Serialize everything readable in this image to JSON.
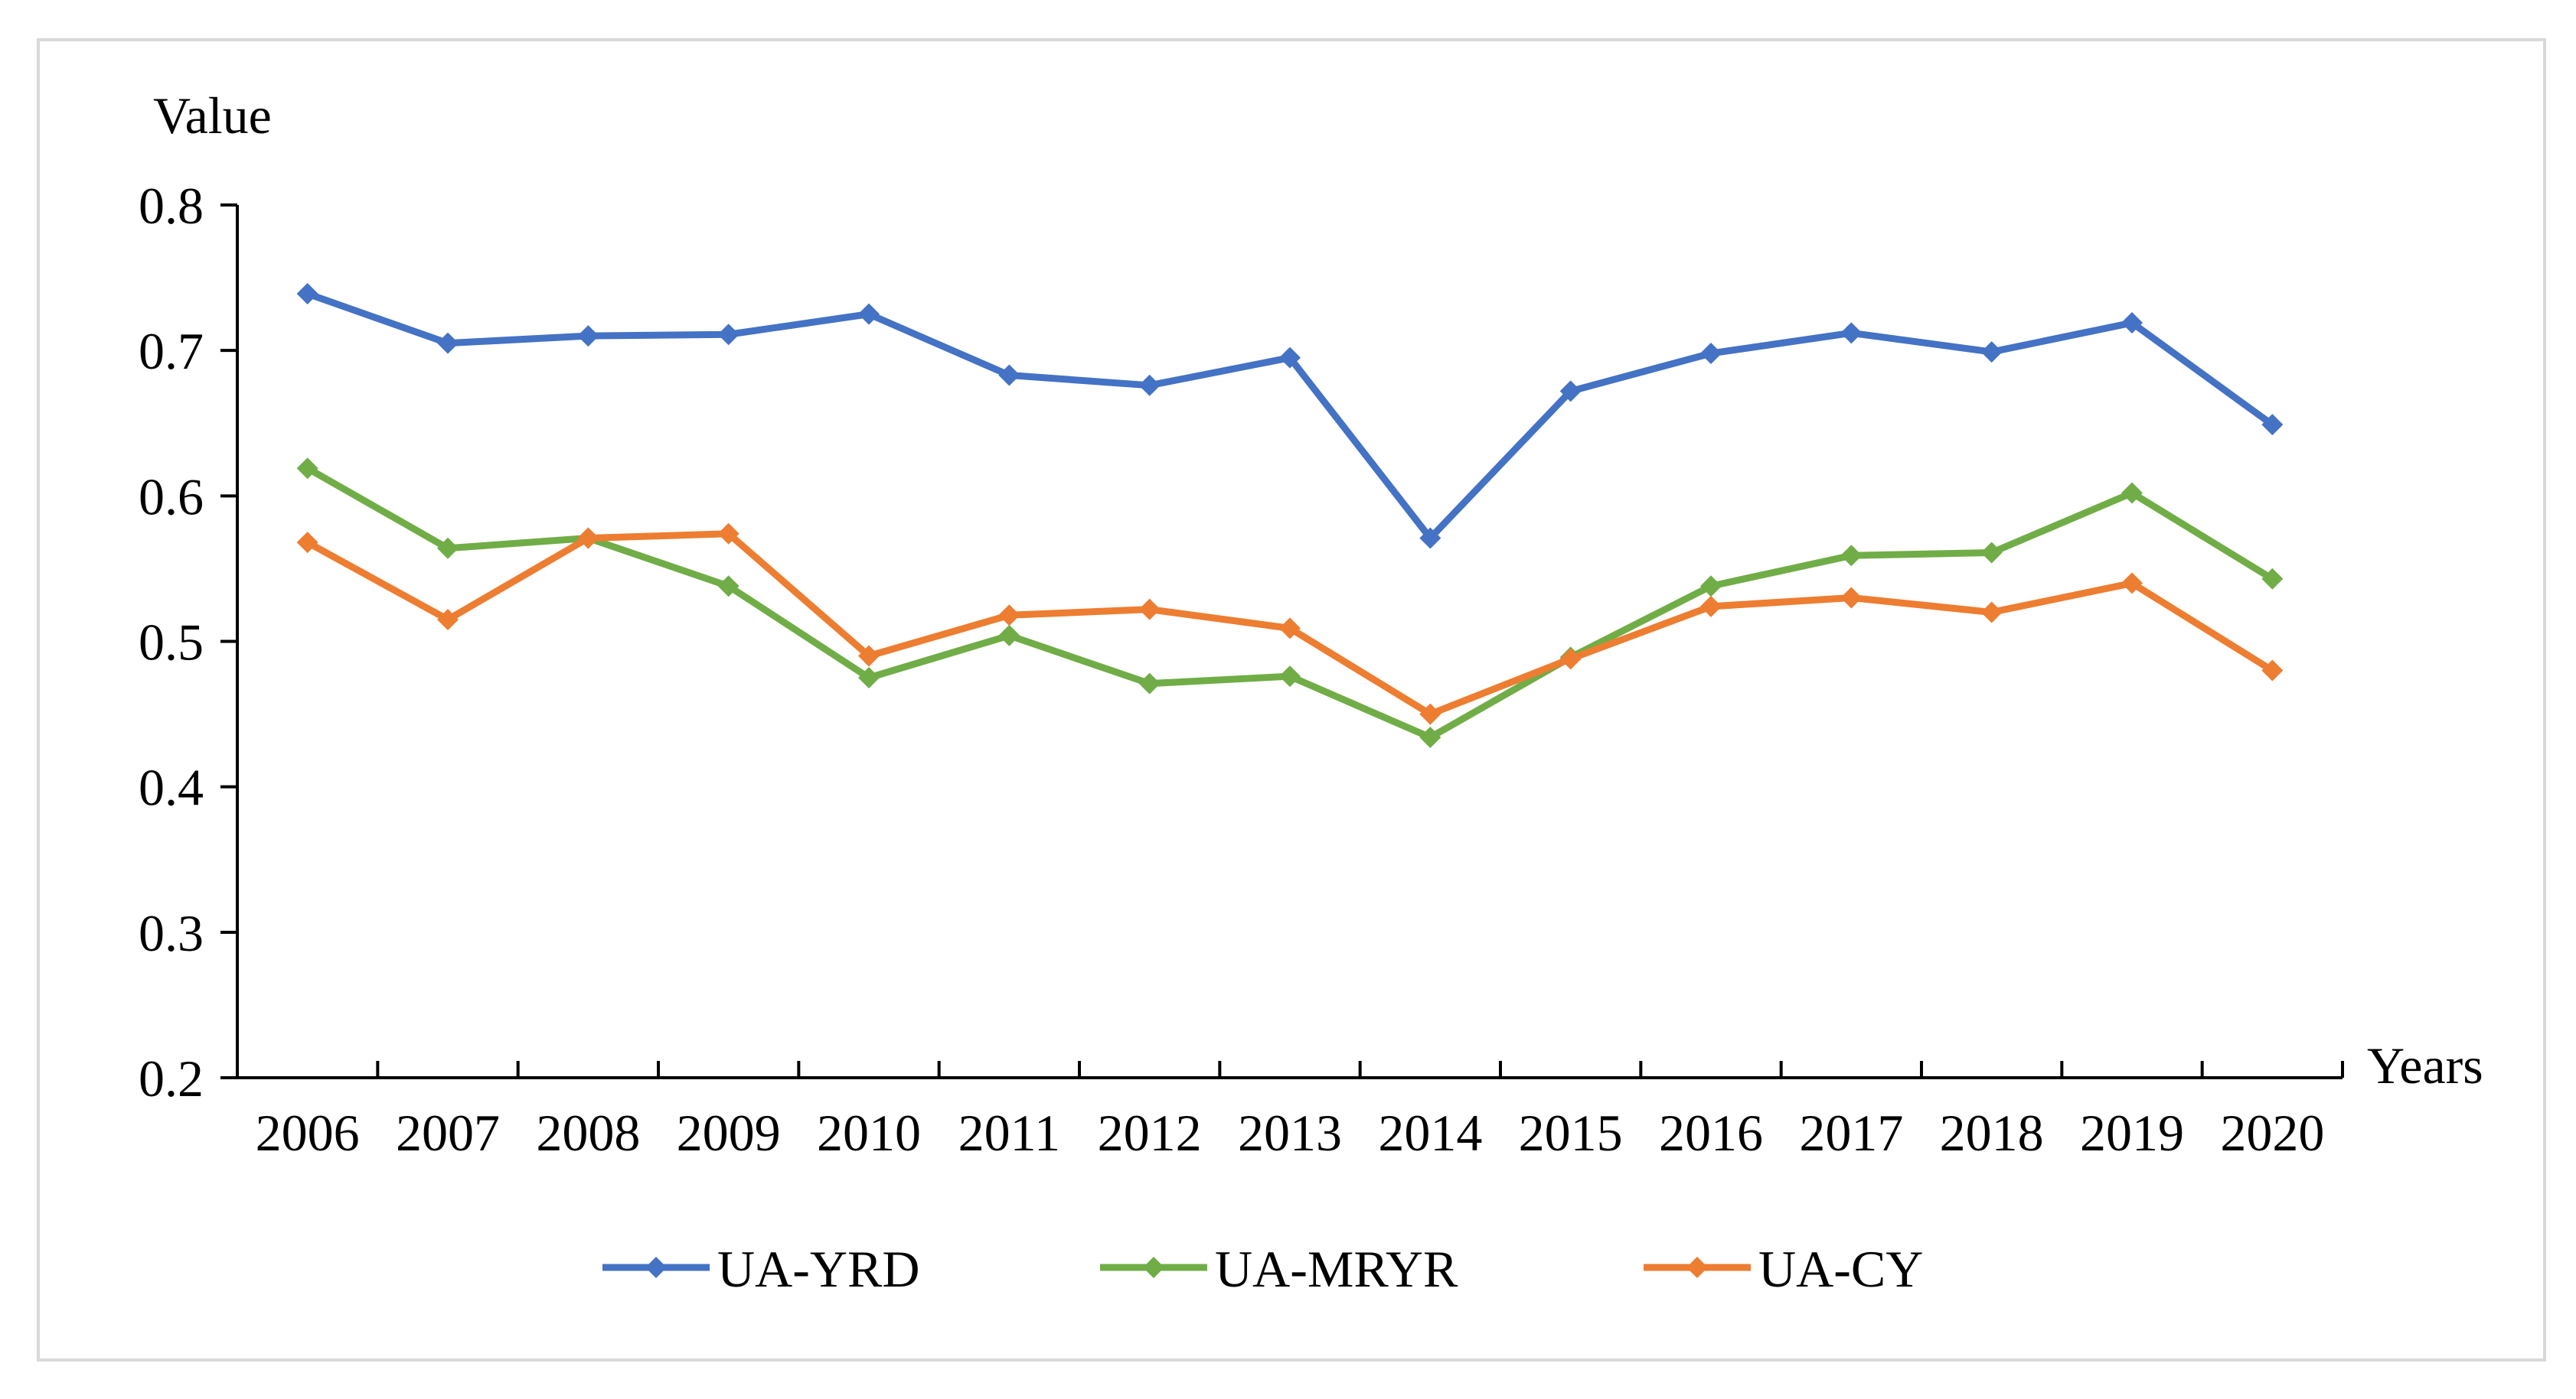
{
  "chart_data": {
    "type": "line",
    "title": "",
    "ylabel": "Value",
    "xlabel": "Years",
    "ylim": [
      0.2,
      0.8
    ],
    "yticks": [
      "0.2",
      "0.3",
      "0.4",
      "0.5",
      "0.6",
      "0.7",
      "0.8"
    ],
    "categories": [
      "2006",
      "2007",
      "2008",
      "2009",
      "2010",
      "2011",
      "2012",
      "2013",
      "2014",
      "2015",
      "2016",
      "2017",
      "2018",
      "2019",
      "2020"
    ],
    "legend_position": "bottom",
    "series": [
      {
        "name": "UA-YRD",
        "color": "#4472C4",
        "values": [
          0.739,
          0.705,
          0.71,
          0.711,
          0.725,
          0.683,
          0.676,
          0.695,
          0.571,
          0.672,
          0.698,
          0.712,
          0.699,
          0.719,
          0.649
        ]
      },
      {
        "name": "UA-MRYR",
        "color": "#70AD47",
        "values": [
          0.619,
          0.564,
          0.571,
          0.538,
          0.475,
          0.504,
          0.471,
          0.476,
          0.434,
          0.489,
          0.538,
          0.559,
          0.561,
          0.602,
          0.543
        ]
      },
      {
        "name": "UA-CY",
        "color": "#ED7D31",
        "values": [
          0.568,
          0.515,
          0.571,
          0.574,
          0.49,
          0.518,
          0.522,
          0.509,
          0.45,
          0.488,
          0.524,
          0.53,
          0.52,
          0.54,
          0.48
        ]
      }
    ]
  }
}
